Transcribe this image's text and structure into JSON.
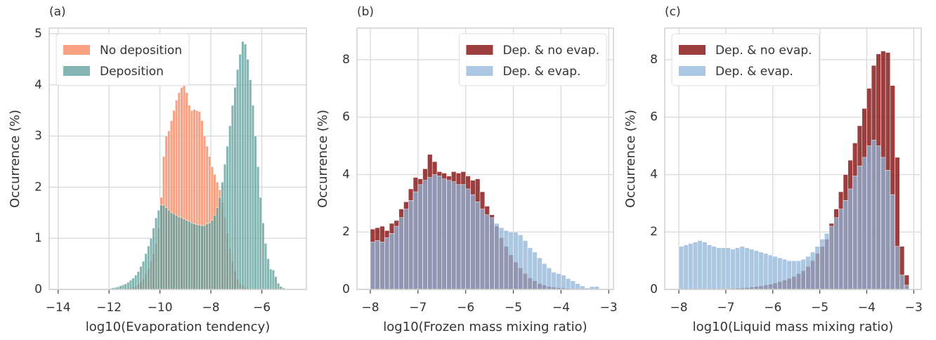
{
  "chart_data": [
    {
      "type": "histogram",
      "title": "(a)",
      "xlabel": "log10(Evaporation tendency)",
      "ylabel": "Occurrence (%)",
      "bins": [
        -12,
        -11.9,
        -11.8,
        -11.7,
        -11.6,
        -11.5,
        -11.4,
        -11.3,
        -11.2,
        -11.1,
        -11,
        -10.9,
        -10.8,
        -10.7,
        -10.6,
        -10.5,
        -10.4,
        -10.3,
        -10.2,
        -10.1,
        -10,
        -9.9,
        -9.8,
        -9.7,
        -9.6,
        -9.5,
        -9.4,
        -9.3,
        -9.2,
        -9.1,
        -9,
        -8.9,
        -8.8,
        -8.7,
        -8.6,
        -8.5,
        -8.4,
        -8.3,
        -8.2,
        -8.1,
        -8,
        -7.9,
        -7.8,
        -7.7,
        -7.6,
        -7.5,
        -7.4,
        -7.3,
        -7.2,
        -7.1,
        -7,
        -6.9,
        -6.8,
        -6.7,
        -6.6,
        -6.5,
        -6.4,
        -6.3,
        -6.2,
        -6.1,
        -6,
        -5.9,
        -5.8,
        -5.7,
        -5.6,
        -5.5,
        -5.4,
        -5.3,
        -5.2,
        -5.1
      ],
      "series": [
        {
          "name": "No deposition",
          "color": "#f8926d",
          "values": [
            0,
            0,
            0,
            0,
            0,
            0,
            0.01,
            0.02,
            0.03,
            0.05,
            0.07,
            0.1,
            0.15,
            0.2,
            0.3,
            0.4,
            0.55,
            0.7,
            0.9,
            1.2,
            1.8,
            2.6,
            3.0,
            3.1,
            3.3,
            3.5,
            3.7,
            3.85,
            3.95,
            4.03,
            3.85,
            3.6,
            3.5,
            3.52,
            3.5,
            3.48,
            3.3,
            3.0,
            2.8,
            2.6,
            2.4,
            2.25,
            2.1,
            1.95,
            1.7,
            1.4,
            1.1,
            0.8,
            0.55,
            0.35,
            0.2,
            0.12,
            0.07,
            0.04,
            0.02,
            0.01,
            0,
            0,
            0,
            0,
            0,
            0,
            0,
            0,
            0,
            0,
            0,
            0,
            0
          ]
        },
        {
          "name": "Deposition",
          "color": "#5a9c99",
          "values": [
            0.02,
            0.03,
            0.04,
            0.05,
            0.07,
            0.09,
            0.11,
            0.14,
            0.18,
            0.22,
            0.28,
            0.35,
            0.45,
            0.55,
            0.7,
            0.85,
            1.0,
            1.2,
            1.4,
            1.55,
            1.65,
            1.65,
            1.6,
            1.55,
            1.5,
            1.48,
            1.45,
            1.42,
            1.4,
            1.38,
            1.35,
            1.33,
            1.3,
            1.28,
            1.27,
            1.26,
            1.25,
            1.25,
            1.28,
            1.3,
            1.35,
            1.45,
            1.6,
            1.8,
            2.1,
            2.45,
            2.8,
            3.2,
            3.6,
            3.95,
            4.3,
            4.6,
            4.85,
            4.8,
            4.5,
            4.1,
            3.6,
            3.0,
            2.4,
            1.8,
            1.3,
            0.9,
            0.6,
            0.4,
            0.38,
            0.25,
            0.12,
            0.06,
            0.03
          ]
        }
      ],
      "xlim": [
        -14.35,
        -4.25
      ],
      "ylim": [
        0,
        5.11
      ],
      "xticks": [
        {
          "value": -14,
          "label": "−14"
        },
        {
          "value": -12,
          "label": "−12"
        },
        {
          "value": -10,
          "label": "−10"
        },
        {
          "value": -8,
          "label": "−8"
        },
        {
          "value": -6,
          "label": "−6"
        }
      ],
      "yticks": [
        0,
        1,
        2,
        3,
        4,
        5
      ],
      "grid": true,
      "legend": "upper-left"
    },
    {
      "type": "histogram",
      "title": "(b)",
      "xlabel": "log10(Frozen mass mixing ratio)",
      "ylabel": "Occurrence (%)",
      "bins": [
        -8,
        -7.9,
        -7.8,
        -7.7,
        -7.6,
        -7.5,
        -7.4,
        -7.3,
        -7.2,
        -7.1,
        -7,
        -6.9,
        -6.8,
        -6.7,
        -6.6,
        -6.5,
        -6.4,
        -6.3,
        -6.2,
        -6.1,
        -6,
        -5.9,
        -5.8,
        -5.7,
        -5.6,
        -5.5,
        -5.4,
        -5.3,
        -5.2,
        -5.1,
        -5,
        -4.9,
        -4.8,
        -4.7,
        -4.6,
        -4.5,
        -4.4,
        -4.3,
        -4.2,
        -4.1,
        -4,
        -3.9,
        -3.8,
        -3.7,
        -3.6,
        -3.5,
        -3.4,
        -3.3,
        -3.2
      ],
      "series": [
        {
          "name": "Dep. & no evap.",
          "color": "#8b1c1c",
          "values": [
            2.1,
            2.15,
            2.2,
            2.05,
            2.3,
            2.4,
            2.8,
            3.05,
            3.5,
            3.9,
            3.85,
            4.2,
            4.7,
            4.45,
            4.1,
            4.05,
            3.95,
            4.1,
            4.05,
            4.1,
            3.95,
            3.8,
            3.85,
            3.4,
            2.9,
            2.6,
            2.2,
            1.8,
            1.5,
            1.2,
            0.95,
            0.75,
            0.55,
            0.4,
            0.3,
            0.2,
            0.15,
            0.1,
            0.08,
            0.06,
            0.05,
            0.03,
            0.02,
            0.01,
            0.01,
            0,
            0,
            0
          ]
        },
        {
          "name": "Dep. & evap.",
          "color": "#8fb4d8",
          "values": [
            1.65,
            1.7,
            1.65,
            1.8,
            1.95,
            2.2,
            2.5,
            2.8,
            3.1,
            3.4,
            3.65,
            3.8,
            3.9,
            4.0,
            3.95,
            3.85,
            3.8,
            3.75,
            3.65,
            3.65,
            3.5,
            3.3,
            3.05,
            2.8,
            2.6,
            2.5,
            2.3,
            2.15,
            2.05,
            2.0,
            2.0,
            1.9,
            1.7,
            1.45,
            1.3,
            1.1,
            0.9,
            0.75,
            0.6,
            0.55,
            0.5,
            0.38,
            0.3,
            0.2,
            0.12,
            0.05,
            0.1,
            0.1
          ]
        }
      ],
      "xlim": [
        -8.28,
        -2.9
      ],
      "ylim": [
        0,
        9.1
      ],
      "xticks": [
        {
          "value": -8,
          "label": "−8"
        },
        {
          "value": -7,
          "label": "−7"
        },
        {
          "value": -6,
          "label": "−6"
        },
        {
          "value": -5,
          "label": "−5"
        },
        {
          "value": -4,
          "label": "−4"
        },
        {
          "value": -3,
          "label": "−3"
        }
      ],
      "yticks": [
        0,
        2,
        4,
        6,
        8
      ],
      "grid": true,
      "legend": "upper-right"
    },
    {
      "type": "histogram",
      "title": "(c)",
      "xlabel": "log10(Liquid mass mixing ratio)",
      "ylabel": "Occurrence (%)",
      "bins": [
        -8,
        -7.9,
        -7.8,
        -7.7,
        -7.6,
        -7.5,
        -7.4,
        -7.3,
        -7.2,
        -7.1,
        -7,
        -6.9,
        -6.8,
        -6.7,
        -6.6,
        -6.5,
        -6.4,
        -6.3,
        -6.2,
        -6.1,
        -6,
        -5.9,
        -5.8,
        -5.7,
        -5.6,
        -5.5,
        -5.4,
        -5.3,
        -5.2,
        -5.1,
        -5,
        -4.9,
        -4.8,
        -4.7,
        -4.6,
        -4.5,
        -4.4,
        -4.3,
        -4.2,
        -4.1,
        -4,
        -3.9,
        -3.8,
        -3.7,
        -3.6,
        -3.5,
        -3.4,
        -3.3,
        -3.2,
        -3.1
      ],
      "series": [
        {
          "name": "Dep. & no evap.",
          "color": "#8b1c1c",
          "values": [
            0,
            0,
            0,
            0,
            0,
            0,
            0,
            0.01,
            0.01,
            0.02,
            0.02,
            0.03,
            0.04,
            0.05,
            0.06,
            0.08,
            0.1,
            0.12,
            0.15,
            0.18,
            0.22,
            0.27,
            0.32,
            0.38,
            0.45,
            0.55,
            0.65,
            0.8,
            1.0,
            1.25,
            1.5,
            1.75,
            2.3,
            2.8,
            3.4,
            4.0,
            4.5,
            5.1,
            5.7,
            6.3,
            7.0,
            7.8,
            8.2,
            8.3,
            8.25,
            7.1,
            4.6,
            1.5,
            0.5
          ]
        },
        {
          "name": "Dep. & evap.",
          "color": "#8fb4d8",
          "values": [
            1.5,
            1.55,
            1.6,
            1.65,
            1.7,
            1.65,
            1.55,
            1.5,
            1.45,
            1.45,
            1.45,
            1.4,
            1.45,
            1.5,
            1.45,
            1.4,
            1.35,
            1.3,
            1.25,
            1.2,
            1.15,
            1.1,
            1.05,
            1.0,
            1.0,
            1.0,
            1.05,
            1.15,
            1.3,
            1.5,
            1.75,
            1.95,
            2.2,
            2.5,
            2.8,
            3.1,
            3.5,
            3.95,
            4.3,
            4.6,
            5.0,
            5.2,
            5.0,
            4.6,
            4.15,
            3.3,
            1.5,
            0.5,
            0.15
          ]
        }
      ],
      "xlim": [
        -8.3,
        -2.84
      ],
      "ylim": [
        0,
        9.1
      ],
      "xticks": [
        {
          "value": -8,
          "label": "−8"
        },
        {
          "value": -7,
          "label": "−7"
        },
        {
          "value": -6,
          "label": "−6"
        },
        {
          "value": -5,
          "label": "−5"
        },
        {
          "value": -4,
          "label": "−4"
        },
        {
          "value": -3,
          "label": "−3"
        }
      ],
      "yticks": [
        0,
        2,
        4,
        6,
        8
      ],
      "grid": true,
      "legend": "upper-left"
    }
  ]
}
